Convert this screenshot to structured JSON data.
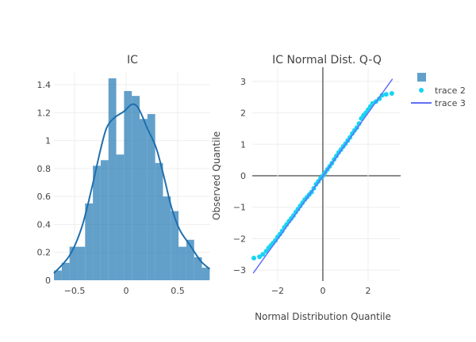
{
  "colors": {
    "bar": "#1f77b4",
    "kde": "#1f6fad",
    "qq_points": "#17d4f2",
    "qq_line": "#636efa"
  },
  "chart_data": [
    {
      "type": "bar",
      "title": "IC",
      "xlabel": "",
      "ylabel": "",
      "xlim": [
        -0.7,
        0.815
      ],
      "ylim": [
        0,
        1.5
      ],
      "grid": true,
      "xticks": [
        {
          "v": -0.5,
          "label": "−0.5"
        },
        {
          "v": 0,
          "label": "0"
        },
        {
          "v": 0.5,
          "label": "0.5"
        }
      ],
      "yticks": [
        {
          "v": 0,
          "label": "0"
        },
        {
          "v": 0.2,
          "label": "0.2"
        },
        {
          "v": 0.4,
          "label": "0.4"
        },
        {
          "v": 0.6,
          "label": "0.6"
        },
        {
          "v": 0.8,
          "label": "0.8"
        },
        {
          "v": 1,
          "label": "1"
        },
        {
          "v": 1.2,
          "label": "1.2"
        },
        {
          "v": 1.4,
          "label": "1.4"
        }
      ],
      "bin_start": -0.7,
      "bin_width": 0.0755,
      "values": [
        0.07,
        0.125,
        0.24,
        0.24,
        0.55,
        0.82,
        0.86,
        1.446,
        0.9,
        1.355,
        1.32,
        1.155,
        1.19,
        0.84,
        0.6,
        0.495,
        0.24,
        0.29,
        0.165,
        0.09
      ],
      "kde": [
        [
          -0.7,
          0.05
        ],
        [
          -0.546,
          0.18
        ],
        [
          -0.43,
          0.38
        ],
        [
          -0.33,
          0.67
        ],
        [
          -0.25,
          0.93
        ],
        [
          -0.19,
          1.09
        ],
        [
          -0.12,
          1.16
        ],
        [
          -0.02,
          1.21
        ],
        [
          0.056,
          1.26
        ],
        [
          0.12,
          1.23
        ],
        [
          0.21,
          1.08
        ],
        [
          0.29,
          0.95
        ],
        [
          0.36,
          0.76
        ],
        [
          0.44,
          0.52
        ],
        [
          0.52,
          0.36
        ],
        [
          0.62,
          0.25
        ],
        [
          0.72,
          0.14
        ],
        [
          0.81,
          0.08
        ]
      ]
    },
    {
      "type": "scatter",
      "title": "IC Normal Dist. Q-Q",
      "xlabel": "Normal Distribution Quantile",
      "ylabel": "Observed Quantile",
      "xlim": [
        -3.12,
        3.44
      ],
      "ylim": [
        -3.35,
        3.45
      ],
      "grid": true,
      "legend_position": "top-right",
      "xticks": [
        {
          "v": -2,
          "label": "−2"
        },
        {
          "v": 0,
          "label": "0"
        },
        {
          "v": 2,
          "label": "2"
        }
      ],
      "yticks": [
        {
          "v": -3,
          "label": "−3"
        },
        {
          "v": -2,
          "label": "−2"
        },
        {
          "v": -1,
          "label": "−1"
        },
        {
          "v": 0,
          "label": "0"
        },
        {
          "v": 1,
          "label": "1"
        },
        {
          "v": 2,
          "label": "2"
        },
        {
          "v": 3,
          "label": "3"
        }
      ],
      "series": [
        {
          "name": "trace 2",
          "mode": "markers",
          "points": [
            [
              -3.05,
              -2.62
            ],
            [
              -2.8,
              -2.58
            ],
            [
              -2.65,
              -2.5
            ],
            [
              -2.5,
              -2.4
            ],
            [
              -2.4,
              -2.3
            ],
            [
              -2.3,
              -2.22
            ],
            [
              -2.2,
              -2.14
            ],
            [
              -2.1,
              -2.06
            ],
            [
              -2.0,
              -1.95
            ],
            [
              -1.9,
              -1.86
            ],
            [
              -1.8,
              -1.76
            ],
            [
              -1.7,
              -1.64
            ],
            [
              -1.6,
              -1.55
            ],
            [
              -1.5,
              -1.45
            ],
            [
              -1.4,
              -1.36
            ],
            [
              -1.3,
              -1.27
            ],
            [
              -1.2,
              -1.16
            ],
            [
              -1.1,
              -1.06
            ],
            [
              -1.0,
              -0.96
            ],
            [
              -0.9,
              -0.86
            ],
            [
              -0.8,
              -0.76
            ],
            [
              -0.7,
              -0.68
            ],
            [
              -0.6,
              -0.6
            ],
            [
              -0.5,
              -0.52
            ],
            [
              -0.4,
              -0.4
            ],
            [
              -0.3,
              -0.27
            ],
            [
              -0.2,
              -0.18
            ],
            [
              -0.1,
              -0.08
            ],
            [
              0,
              0
            ],
            [
              0.1,
              0.1
            ],
            [
              0.2,
              0.2
            ],
            [
              0.3,
              0.3
            ],
            [
              0.4,
              0.4
            ],
            [
              0.5,
              0.52
            ],
            [
              0.6,
              0.63
            ],
            [
              0.7,
              0.74
            ],
            [
              0.8,
              0.83
            ],
            [
              0.9,
              0.93
            ],
            [
              1.0,
              1.02
            ],
            [
              1.1,
              1.12
            ],
            [
              1.2,
              1.22
            ],
            [
              1.3,
              1.34
            ],
            [
              1.4,
              1.44
            ],
            [
              1.5,
              1.53
            ],
            [
              1.6,
              1.66
            ],
            [
              1.7,
              1.82
            ],
            [
              1.8,
              1.92
            ],
            [
              1.9,
              2.0
            ],
            [
              2.0,
              2.1
            ],
            [
              2.1,
              2.2
            ],
            [
              2.2,
              2.3
            ],
            [
              2.35,
              2.36
            ],
            [
              2.5,
              2.45
            ],
            [
              2.62,
              2.56
            ],
            [
              2.8,
              2.59
            ],
            [
              3.05,
              2.62
            ]
          ]
        },
        {
          "name": "trace 3",
          "mode": "lines",
          "points": [
            [
              -3.08,
              -3.1
            ],
            [
              3.08,
              3.08
            ]
          ]
        }
      ]
    }
  ]
}
